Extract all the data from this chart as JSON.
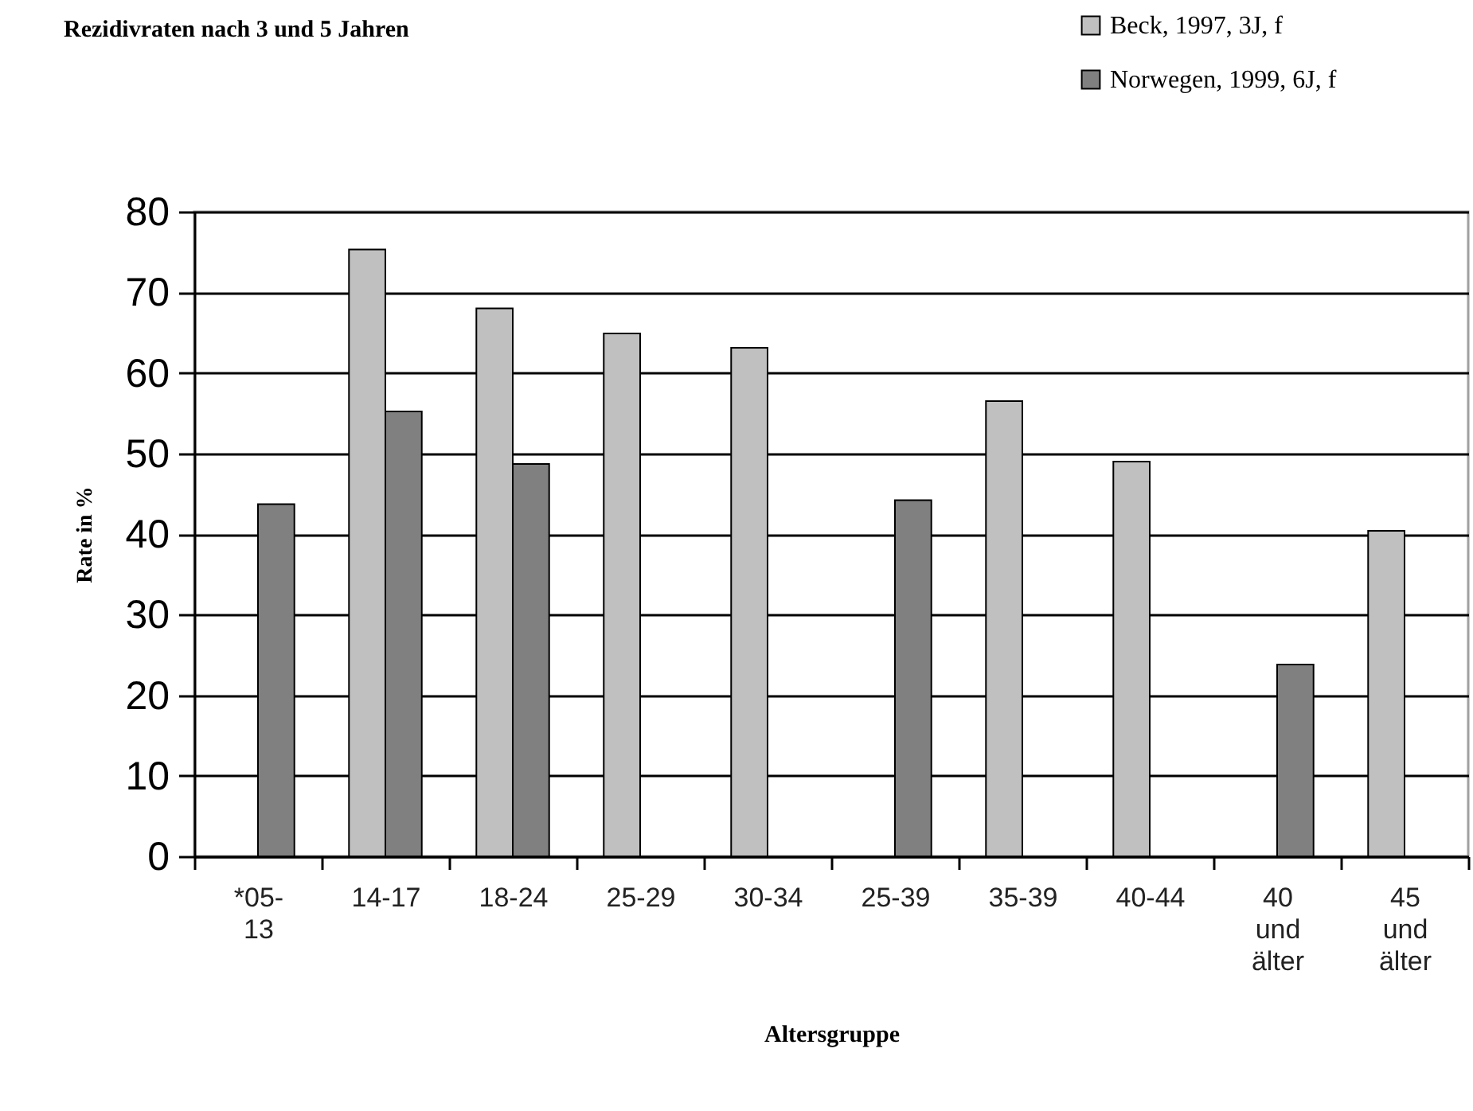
{
  "chart_data": {
    "type": "bar",
    "title": "Rezidivraten nach 3 und 5 Jahren",
    "xlabel": "Altersgruppe",
    "ylabel": "Rate in %",
    "categories": [
      "*05-13",
      "14-17",
      "18-24",
      "25-29",
      "30-34",
      "25-39",
      "35-39",
      "40-44",
      "40 und älter",
      "45 und älter"
    ],
    "series": [
      {
        "name": "Beck, 1997, 3J, f",
        "color": "#c0c0c0",
        "values": [
          null,
          75.3,
          68.0,
          64.9,
          63.1,
          null,
          56.5,
          49.0,
          null,
          40.4
        ]
      },
      {
        "name": "Norwegen, 1999, 6J, f",
        "color": "#808080",
        "values": [
          43.7,
          55.2,
          48.7,
          null,
          null,
          44.2,
          null,
          null,
          23.8,
          null
        ]
      }
    ],
    "ylim": [
      0,
      80
    ],
    "yticks": [
      0,
      10,
      20,
      30,
      40,
      50,
      60,
      70,
      80
    ],
    "grid": "y",
    "legend": "top right"
  }
}
